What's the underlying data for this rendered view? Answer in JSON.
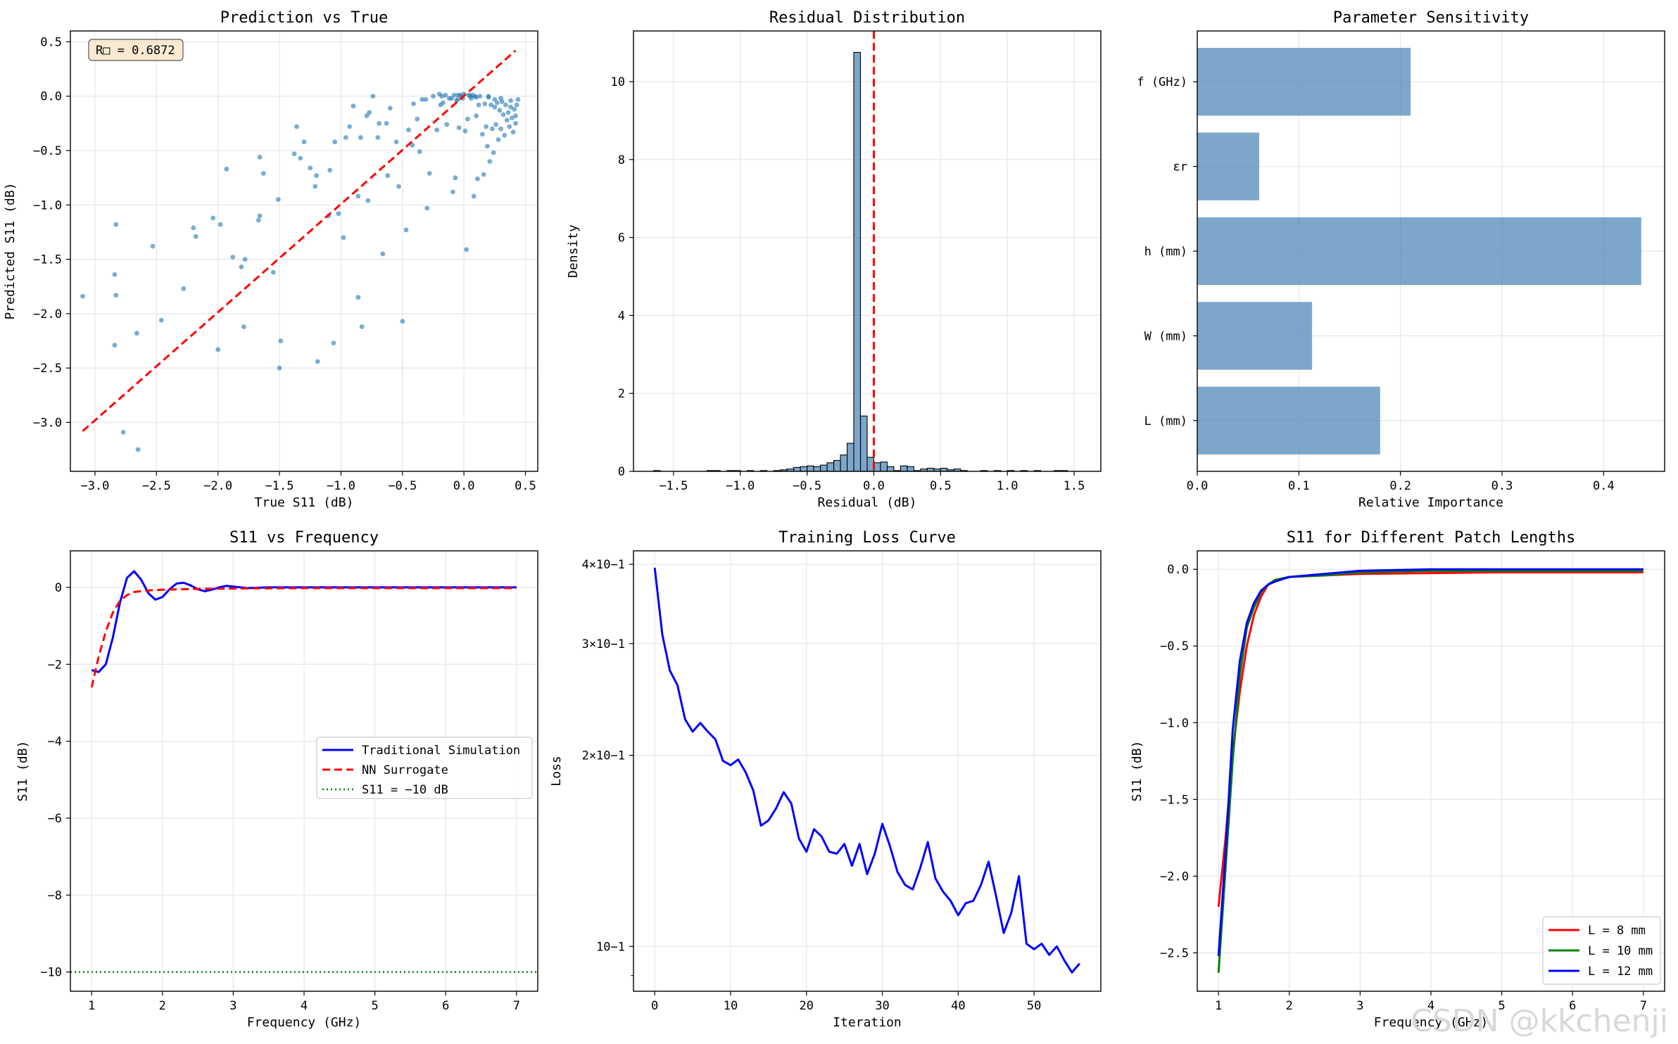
{
  "watermark": "CSDN @kkchenji",
  "colors": {
    "scatter": "#1f77b4",
    "bar": "#4682b4",
    "red": "#ff0000",
    "blue": "#0000ff",
    "green": "#008000"
  },
  "chart_data": [
    {
      "id": "pred_vs_true",
      "type": "scatter",
      "title": "Prediction vs True",
      "xlabel": "True S11 (dB)",
      "ylabel": "Predicted S11 (dB)",
      "annotation": "R□ = 0.6872",
      "xlim": [
        -3.2,
        0.6
      ],
      "ylim": [
        -3.45,
        0.6
      ],
      "xticks": [
        -3.0,
        -2.5,
        -2.0,
        -1.5,
        -1.0,
        -0.5,
        0.0,
        0.5
      ],
      "xticklabels": [
        "−3.0",
        "−2.5",
        "−2.0",
        "−1.5",
        "−1.0",
        "−0.5",
        "0.0",
        "0.5"
      ],
      "yticks": [
        0.5,
        0.0,
        -0.5,
        -1.0,
        -1.5,
        -2.0,
        -2.5,
        -3.0
      ],
      "yticklabels": [
        "0.5",
        "0.0",
        "−0.5",
        "−1.0",
        "−1.5",
        "−2.0",
        "−2.5",
        "−3.0"
      ],
      "ideal_line": {
        "x": [
          -3.1,
          0.42
        ],
        "y": [
          -3.08,
          0.42
        ]
      },
      "points": [
        [
          -3.1,
          -1.84
        ],
        [
          -2.83,
          -1.18
        ],
        [
          -2.84,
          -1.64
        ],
        [
          -2.83,
          -1.83
        ],
        [
          -2.84,
          -2.29
        ],
        [
          -2.77,
          -3.09
        ],
        [
          -2.65,
          -3.25
        ],
        [
          -2.66,
          -2.18
        ],
        [
          -2.53,
          -1.38
        ],
        [
          -2.46,
          -2.06
        ],
        [
          -2.28,
          -1.77
        ],
        [
          -2.2,
          -1.21
        ],
        [
          -2.18,
          -1.29
        ],
        [
          -2.04,
          -1.12
        ],
        [
          -2.0,
          -2.33
        ],
        [
          -1.98,
          -1.18
        ],
        [
          -1.93,
          -0.67
        ],
        [
          -1.88,
          -1.48
        ],
        [
          -1.81,
          -1.57
        ],
        [
          -1.78,
          -1.5
        ],
        [
          -1.79,
          -2.12
        ],
        [
          -1.66,
          -1.1
        ],
        [
          -1.67,
          -1.14
        ],
        [
          -1.66,
          -0.56
        ],
        [
          -1.63,
          -0.71
        ],
        [
          -1.55,
          -1.62
        ],
        [
          -1.51,
          -0.95
        ],
        [
          -1.5,
          -2.5
        ],
        [
          -1.49,
          -2.25
        ],
        [
          -1.38,
          -0.53
        ],
        [
          -1.36,
          -0.28
        ],
        [
          -1.33,
          -0.57
        ],
        [
          -1.3,
          -0.42
        ],
        [
          -1.25,
          -0.66
        ],
        [
          -1.21,
          -0.83
        ],
        [
          -1.19,
          -2.44
        ],
        [
          -1.2,
          -0.73
        ],
        [
          -1.1,
          -1.1
        ],
        [
          -1.09,
          -0.68
        ],
        [
          -1.06,
          -2.27
        ],
        [
          -1.05,
          -0.42
        ],
        [
          -1.02,
          -1.08
        ],
        [
          -0.98,
          -1.3
        ],
        [
          -0.96,
          -0.38
        ],
        [
          -0.93,
          -0.28
        ],
        [
          -0.9,
          -0.09
        ],
        [
          -0.86,
          -0.92
        ],
        [
          -0.86,
          -1.85
        ],
        [
          -0.84,
          -0.38
        ],
        [
          -0.83,
          -2.12
        ],
        [
          -0.79,
          -0.18
        ],
        [
          -0.78,
          -0.96
        ],
        [
          -0.77,
          -0.15
        ],
        [
          -0.74,
          0.0
        ],
        [
          -0.7,
          -0.38
        ],
        [
          -0.69,
          -0.25
        ],
        [
          -0.66,
          -1.45
        ],
        [
          -0.63,
          -0.25
        ],
        [
          -0.62,
          -0.73
        ],
        [
          -0.6,
          -0.11
        ],
        [
          -0.55,
          -0.42
        ],
        [
          -0.53,
          -0.83
        ],
        [
          -0.5,
          -2.07
        ],
        [
          -0.47,
          -1.23
        ],
        [
          -0.45,
          -0.31
        ],
        [
          -0.42,
          -0.45
        ],
        [
          -0.41,
          -0.07
        ],
        [
          -0.38,
          -0.21
        ],
        [
          -0.36,
          -0.51
        ],
        [
          -0.34,
          -0.03
        ],
        [
          -0.31,
          -0.03
        ],
        [
          -0.3,
          -1.03
        ],
        [
          -0.28,
          -0.71
        ],
        [
          -0.25,
          0.0
        ],
        [
          -0.22,
          -0.31
        ],
        [
          -0.2,
          0.02
        ],
        [
          -0.19,
          -0.08
        ],
        [
          -0.17,
          -0.06
        ],
        [
          -0.15,
          0.01
        ],
        [
          -0.14,
          -0.26
        ],
        [
          -0.12,
          -0.02
        ],
        [
          -0.1,
          -0.02
        ],
        [
          -0.09,
          -0.88
        ],
        [
          -0.08,
          0.01
        ],
        [
          -0.07,
          -0.75
        ],
        [
          -0.06,
          -0.04
        ],
        [
          -0.05,
          -0.03
        ],
        [
          -0.04,
          -0.29
        ],
        [
          -0.03,
          0.01
        ],
        [
          -0.02,
          0.0
        ],
        [
          -0.01,
          -0.02
        ],
        [
          0.0,
          0.02
        ],
        [
          0.01,
          -0.32
        ],
        [
          0.02,
          -1.41
        ],
        [
          0.03,
          -0.21
        ],
        [
          0.04,
          0.01
        ],
        [
          0.05,
          0.0
        ],
        [
          0.06,
          -0.02
        ],
        [
          0.07,
          0.01
        ],
        [
          0.08,
          -0.92
        ],
        [
          0.09,
          0.0
        ],
        [
          0.1,
          -0.18
        ],
        [
          0.11,
          -0.76
        ],
        [
          0.12,
          -0.08
        ],
        [
          0.13,
          0.0
        ],
        [
          0.15,
          -0.35
        ],
        [
          0.16,
          -0.72
        ],
        [
          0.17,
          -0.07
        ],
        [
          0.18,
          -0.28
        ],
        [
          0.19,
          -0.46
        ],
        [
          0.2,
          0.0
        ],
        [
          0.21,
          -0.6
        ],
        [
          0.22,
          -0.08
        ],
        [
          0.23,
          -0.3
        ],
        [
          0.24,
          -0.52
        ],
        [
          0.25,
          -0.1
        ],
        [
          0.26,
          -0.26
        ],
        [
          0.27,
          -0.06
        ],
        [
          0.28,
          -0.4
        ],
        [
          0.29,
          -0.13
        ],
        [
          0.3,
          -0.3
        ],
        [
          0.31,
          -0.05
        ],
        [
          0.32,
          -0.17
        ],
        [
          0.33,
          -0.36
        ],
        [
          0.34,
          -0.08
        ],
        [
          0.35,
          -0.22
        ],
        [
          0.36,
          -0.15
        ],
        [
          0.37,
          -0.28
        ],
        [
          0.38,
          -0.04
        ],
        [
          0.39,
          -0.2
        ],
        [
          0.4,
          -0.33
        ],
        [
          0.41,
          -0.12
        ],
        [
          0.42,
          -0.25
        ],
        [
          0.43,
          -0.08
        ],
        [
          0.44,
          -0.03
        ],
        [
          0.42,
          -0.18
        ],
        [
          0.38,
          -0.1
        ],
        [
          0.3,
          -0.02
        ],
        [
          0.2,
          -0.01
        ],
        [
          0.1,
          -0.01
        ],
        [
          -0.05,
          0.01
        ],
        [
          -0.18,
          0.0
        ],
        [
          0.25,
          -0.03
        ]
      ]
    },
    {
      "id": "residual_dist",
      "type": "bar",
      "title": "Residual Distribution",
      "xlabel": "Residual (dB)",
      "ylabel": "Density",
      "xlim": [
        -1.8,
        1.7
      ],
      "ylim": [
        0,
        11.3
      ],
      "xticks": [
        -1.5,
        -1.0,
        -0.5,
        0.0,
        0.5,
        1.0,
        1.5
      ],
      "xticklabels": [
        "−1.5",
        "−1.0",
        "−0.5",
        "0.0",
        "0.5",
        "1.0",
        "1.5"
      ],
      "yticks": [
        0,
        2,
        4,
        6,
        8,
        10
      ],
      "yticklabels": [
        "0",
        "2",
        "4",
        "6",
        "8",
        "10"
      ],
      "bin_start": -1.65,
      "bin_width": 0.05,
      "vline_x": 0.0,
      "values": [
        0.02,
        0.0,
        0.0,
        0.0,
        0.0,
        0.0,
        0.0,
        0.0,
        0.02,
        0.02,
        0.0,
        0.02,
        0.02,
        0.0,
        0.02,
        0.0,
        0.02,
        0.0,
        0.02,
        0.04,
        0.06,
        0.1,
        0.12,
        0.14,
        0.12,
        0.16,
        0.22,
        0.28,
        0.42,
        0.72,
        10.75,
        1.42,
        0.36,
        0.22,
        0.24,
        0.12,
        0.02,
        0.14,
        0.12,
        0.02,
        0.06,
        0.08,
        0.06,
        0.08,
        0.04,
        0.06,
        0.02,
        0.0,
        0.0,
        0.02,
        0.0,
        0.02,
        0.0,
        0.02,
        0.0,
        0.02,
        0.0,
        0.02,
        0.0,
        0.0,
        0.02,
        0.02,
        0.0,
        0.0
      ]
    },
    {
      "id": "param_sensitivity",
      "type": "bar",
      "title": "Parameter Sensitivity",
      "xlabel": "Relative Importance",
      "ylabel": "",
      "categories": [
        "L (mm)",
        "W (mm)",
        "h (mm)",
        "εr",
        "f (GHz)"
      ],
      "values": [
        0.18,
        0.113,
        0.437,
        0.061,
        0.21
      ],
      "xlim": [
        0,
        0.46
      ],
      "ylim": [
        -0.6,
        4.6
      ],
      "xticks": [
        0.0,
        0.1,
        0.2,
        0.3,
        0.4
      ],
      "xticklabels": [
        "0.0",
        "0.1",
        "0.2",
        "0.3",
        "0.4"
      ]
    },
    {
      "id": "s11_vs_freq",
      "type": "line",
      "title": "S11 vs Frequency",
      "xlabel": "Frequency (GHz)",
      "ylabel": "S11 (dB)",
      "xlim": [
        0.7,
        7.3
      ],
      "ylim": [
        -10.5,
        0.95
      ],
      "xticks": [
        1,
        2,
        3,
        4,
        5,
        6,
        7
      ],
      "xticklabels": [
        "1",
        "2",
        "3",
        "4",
        "5",
        "6",
        "7"
      ],
      "yticks": [
        0,
        -2,
        -4,
        -6,
        -8,
        -10
      ],
      "yticklabels": [
        "0",
        "−2",
        "−4",
        "−6",
        "−8",
        "−10"
      ],
      "series": [
        {
          "name": "Traditional Simulation",
          "style": "solid",
          "color": "#0000ff",
          "x": [
            1.0,
            1.1,
            1.2,
            1.3,
            1.4,
            1.5,
            1.6,
            1.7,
            1.8,
            1.9,
            2.0,
            2.1,
            2.2,
            2.3,
            2.4,
            2.5,
            2.6,
            2.7,
            2.8,
            2.9,
            3.0,
            3.2,
            3.5,
            4.0,
            5.0,
            6.0,
            7.0
          ],
          "y": [
            -2.15,
            -2.2,
            -2.0,
            -1.3,
            -0.4,
            0.25,
            0.42,
            0.2,
            -0.15,
            -0.32,
            -0.25,
            -0.05,
            0.1,
            0.12,
            0.05,
            -0.05,
            -0.1,
            -0.06,
            0.0,
            0.04,
            0.02,
            -0.02,
            0.0,
            0.0,
            0.0,
            0.0,
            0.0
          ]
        },
        {
          "name": "NN Surrogate",
          "style": "dashed",
          "color": "#ff0000",
          "x": [
            1.0,
            1.1,
            1.2,
            1.3,
            1.4,
            1.5,
            1.6,
            1.8,
            2.0,
            2.5,
            3.0,
            4.0,
            5.0,
            6.0,
            7.0
          ],
          "y": [
            -2.6,
            -1.8,
            -1.15,
            -0.65,
            -0.35,
            -0.2,
            -0.12,
            -0.08,
            -0.06,
            -0.04,
            -0.03,
            -0.02,
            -0.02,
            -0.02,
            -0.02
          ]
        },
        {
          "name": "S11 = −10 dB",
          "style": "dotted",
          "color": "#008000",
          "x": [
            0.7,
            7.3
          ],
          "y": [
            -10,
            -10
          ]
        }
      ]
    },
    {
      "id": "training_loss",
      "type": "line",
      "yscale": "log",
      "title": "Training Loss Curve",
      "xlabel": "Iteration",
      "ylabel": "Loss",
      "xlim": [
        -2.8,
        58.8
      ],
      "ylim": [
        0.085,
        0.42
      ],
      "xticks": [
        0,
        10,
        20,
        30,
        40,
        50
      ],
      "xticklabels": [
        "0",
        "10",
        "20",
        "30",
        "40",
        "50"
      ],
      "yticks": [
        0.1,
        0.2,
        0.3,
        0.4
      ],
      "yticklabels": [
        "10−1",
        "2×10−1",
        "3×10−1",
        "4×10−1"
      ],
      "series": [
        {
          "name": "Loss",
          "style": "solid",
          "color": "#0000ff",
          "x": [
            0,
            1,
            2,
            3,
            4,
            5,
            6,
            7,
            8,
            9,
            10,
            11,
            12,
            13,
            14,
            15,
            16,
            17,
            18,
            19,
            20,
            21,
            22,
            23,
            24,
            25,
            26,
            27,
            28,
            29,
            30,
            31,
            32,
            33,
            34,
            35,
            36,
            37,
            38,
            39,
            40,
            41,
            42,
            43,
            44,
            45,
            46,
            47,
            48,
            49,
            50,
            51,
            52,
            53,
            54,
            55,
            56
          ],
          "y": [
            0.395,
            0.31,
            0.272,
            0.258,
            0.228,
            0.218,
            0.225,
            0.218,
            0.212,
            0.196,
            0.193,
            0.197,
            0.188,
            0.176,
            0.155,
            0.158,
            0.165,
            0.175,
            0.168,
            0.148,
            0.141,
            0.153,
            0.149,
            0.141,
            0.14,
            0.145,
            0.134,
            0.145,
            0.13,
            0.14,
            0.156,
            0.144,
            0.131,
            0.125,
            0.123,
            0.133,
            0.146,
            0.128,
            0.122,
            0.118,
            0.112,
            0.117,
            0.118,
            0.125,
            0.136,
            0.12,
            0.105,
            0.113,
            0.129,
            0.101,
            0.099,
            0.101,
            0.097,
            0.1,
            0.095,
            0.091,
            0.094
          ]
        }
      ]
    },
    {
      "id": "s11_patch_lengths",
      "type": "line",
      "title": "S11 for Different Patch Lengths",
      "xlabel": "Frequency (GHz)",
      "ylabel": "S11 (dB)",
      "xlim": [
        0.7,
        7.3
      ],
      "ylim": [
        -2.75,
        0.12
      ],
      "xticks": [
        1,
        2,
        3,
        4,
        5,
        6,
        7
      ],
      "xticklabels": [
        "1",
        "2",
        "3",
        "4",
        "5",
        "6",
        "7"
      ],
      "yticks": [
        0.0,
        -0.5,
        -1.0,
        -1.5,
        -2.0,
        -2.5
      ],
      "yticklabels": [
        "0.0",
        "−0.5",
        "−1.0",
        "−1.5",
        "−2.0",
        "−2.5"
      ],
      "series": [
        {
          "name": "L = 8 mm",
          "color": "#ff0000",
          "style": "solid",
          "x": [
            1.0,
            1.1,
            1.2,
            1.3,
            1.4,
            1.5,
            1.6,
            1.7,
            1.8,
            2.0,
            2.5,
            3.0,
            4.0,
            5.0,
            6.0,
            7.0
          ],
          "y": [
            -2.2,
            -1.75,
            -1.2,
            -0.8,
            -0.5,
            -0.3,
            -0.18,
            -0.1,
            -0.07,
            -0.05,
            -0.04,
            -0.03,
            -0.025,
            -0.02,
            -0.02,
            -0.02
          ]
        },
        {
          "name": "L = 10 mm",
          "color": "#008000",
          "style": "solid",
          "x": [
            1.0,
            1.1,
            1.2,
            1.3,
            1.4,
            1.5,
            1.6,
            1.7,
            1.8,
            2.0,
            2.5,
            3.0,
            4.0,
            5.0,
            6.0,
            7.0
          ],
          "y": [
            -2.63,
            -1.95,
            -1.25,
            -0.7,
            -0.38,
            -0.25,
            -0.15,
            -0.1,
            -0.07,
            -0.05,
            -0.04,
            -0.02,
            -0.01,
            -0.01,
            -0.01,
            -0.01
          ]
        },
        {
          "name": "L = 12 mm",
          "color": "#0000ff",
          "style": "solid",
          "x": [
            1.0,
            1.1,
            1.2,
            1.3,
            1.4,
            1.5,
            1.6,
            1.7,
            1.8,
            2.0,
            2.5,
            3.0,
            4.0,
            5.0,
            6.0,
            7.0
          ],
          "y": [
            -2.52,
            -1.85,
            -1.05,
            -0.6,
            -0.35,
            -0.22,
            -0.14,
            -0.1,
            -0.08,
            -0.05,
            -0.03,
            -0.01,
            0.0,
            0.0,
            0.0,
            0.0
          ]
        }
      ]
    }
  ]
}
